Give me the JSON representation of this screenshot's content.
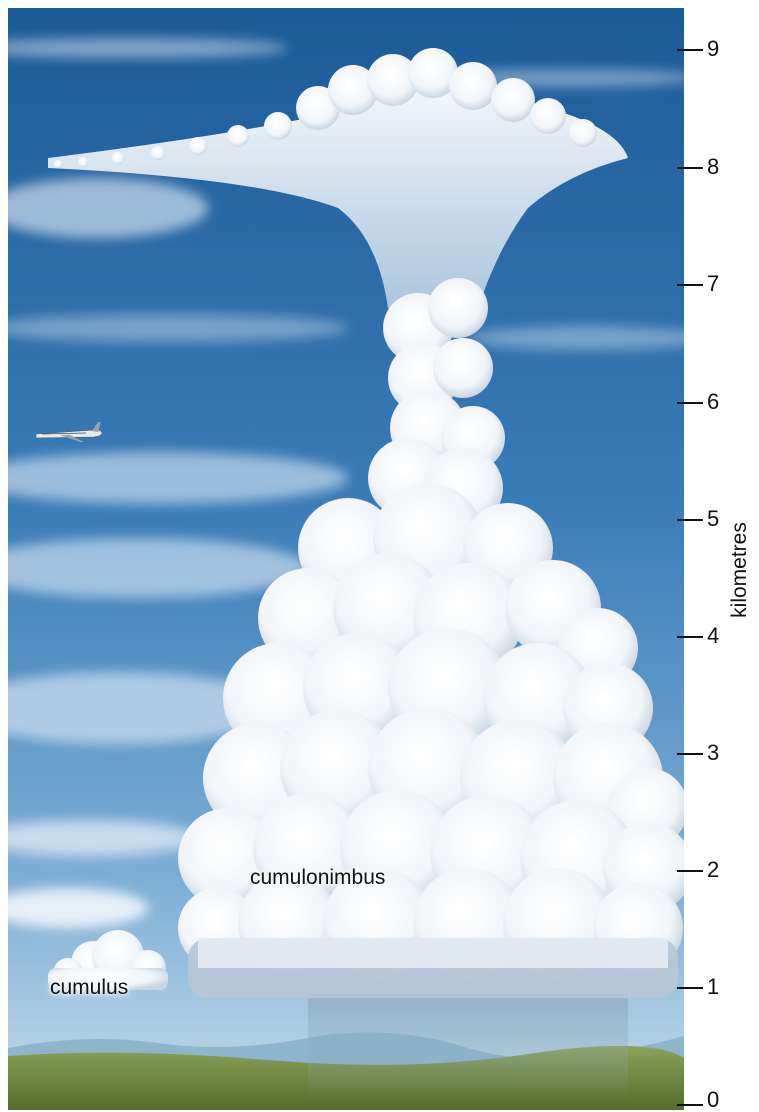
{
  "labels": {
    "cumulonimbus": "cumulonimbus",
    "cumulus": "cumulus"
  },
  "axis": {
    "title": "kilometres",
    "ticks": [
      "0",
      "1",
      "2",
      "3",
      "4",
      "5",
      "6",
      "7",
      "8",
      "9"
    ],
    "min": 0,
    "max": 9
  },
  "colors": {
    "sky_top": "#1f5f9e",
    "sky_bottom": "#a9cfe6",
    "cloud": "#ffffff",
    "ground": "#6f8a3a"
  },
  "icons": {
    "airplane": "airplane-icon"
  }
}
